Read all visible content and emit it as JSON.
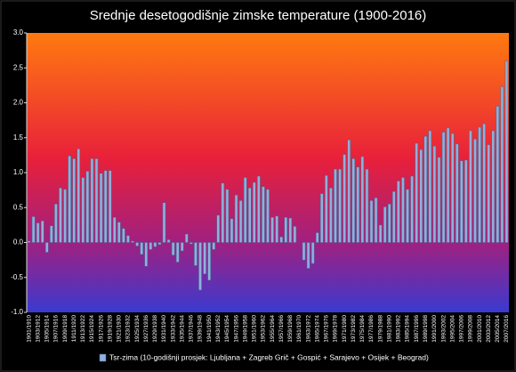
{
  "chart_data": {
    "type": "bar",
    "title": "Srednje desetogodišnje zimske temperature (1900-2016)",
    "categories": [
      "1901/1910",
      null,
      "1903/1912",
      null,
      "1905/1914",
      null,
      "1907/1916",
      null,
      "1909/1918",
      null,
      "1911/1920",
      null,
      "1913/1922",
      null,
      "1915/1924",
      null,
      "1917/1926",
      null,
      "1919/1928",
      null,
      "1921/1930",
      null,
      "1923/1932",
      null,
      "1925/1934",
      null,
      "1927/1936",
      null,
      "1929/1938",
      null,
      "1931/1940",
      null,
      "1933/1942",
      null,
      "1935/1944",
      null,
      "1937/1946",
      null,
      "1939/1948",
      null,
      "1941/1950",
      null,
      "1943/1952",
      null,
      "1945/1954",
      null,
      "1947/1956",
      null,
      "1949/1958",
      null,
      "1951/1960",
      null,
      "1953/1962",
      null,
      "1955/1964",
      null,
      "1957/1966",
      null,
      "1959/1968",
      null,
      "1961/1970",
      null,
      "1963/1972",
      null,
      "1965/1974",
      null,
      "1967/1976",
      null,
      "1969/1978",
      null,
      "1971/1980",
      null,
      "1973/1982",
      null,
      "1975/1984",
      null,
      "1977/1986",
      null,
      "1979/1988",
      null,
      "1981/1990",
      null,
      "1983/1992",
      null,
      "1985/1994",
      null,
      "1987/1996",
      null,
      "1989/1998",
      null,
      "1991/2000",
      null,
      "1993/2002",
      null,
      "1995/2004",
      null,
      "1997/2006",
      null,
      "1999/2008",
      null,
      "2001/2010",
      null,
      "2003/2012",
      null,
      "2005/2014",
      null,
      "2007/2016"
    ],
    "series": [
      {
        "name": "Tsr-zima (10-godišnji prosjek: Ljubljana + Zagreb Grič + Gospić + Sarajevo + Osijek + Beograd)",
        "color": "#8fb0dc",
        "values": [
          0.02,
          0.37,
          0.28,
          0.31,
          -0.14,
          0.24,
          0.55,
          0.78,
          0.76,
          1.24,
          1.2,
          1.34,
          0.93,
          1.02,
          1.2,
          1.2,
          0.99,
          1.03,
          1.03,
          0.36,
          0.29,
          0.2,
          0.1,
          0.02,
          -0.05,
          -0.17,
          -0.34,
          -0.1,
          -0.06,
          -0.03,
          0.57,
          0.04,
          -0.18,
          -0.28,
          -0.12,
          0.12,
          -0.02,
          -0.33,
          -0.68,
          -0.45,
          -0.54,
          -0.1,
          0.39,
          0.85,
          0.76,
          0.34,
          0.68,
          0.6,
          0.93,
          0.78,
          0.86,
          0.95,
          0.8,
          0.76,
          0.36,
          0.38,
          0.08,
          0.36,
          0.35,
          0.23,
          0.0,
          -0.25,
          -0.37,
          -0.3,
          0.14,
          0.7,
          0.96,
          0.78,
          1.05,
          1.05,
          1.26,
          1.47,
          1.2,
          1.08,
          1.23,
          1.05,
          0.6,
          0.64,
          0.25,
          0.51,
          0.55,
          0.73,
          0.88,
          0.93,
          0.76,
          0.95,
          1.42,
          1.33,
          1.52,
          1.6,
          1.38,
          1.22,
          1.58,
          1.64,
          1.56,
          1.41,
          1.17,
          1.18,
          1.6,
          1.48,
          1.65,
          1.7,
          1.4,
          1.6,
          1.95,
          2.23,
          2.6
        ]
      }
    ],
    "ylim": [
      -1.0,
      3.0
    ],
    "yticks": [
      {
        "value": -1.0,
        "label": "-1.0"
      },
      {
        "value": -0.5,
        "label": "-0.5"
      },
      {
        "value": 0,
        "label": "0.0"
      },
      {
        "value": 0.5,
        "label": "0.5"
      },
      {
        "value": 1.0,
        "label": "1.0"
      },
      {
        "value": 1.5,
        "label": "1.5"
      },
      {
        "value": 2.0,
        "label": "2.0"
      },
      {
        "value": 2.5,
        "label": "2.5"
      },
      {
        "value": 3.0,
        "label": "3.0"
      }
    ],
    "grid": false,
    "legend": "bottom"
  }
}
